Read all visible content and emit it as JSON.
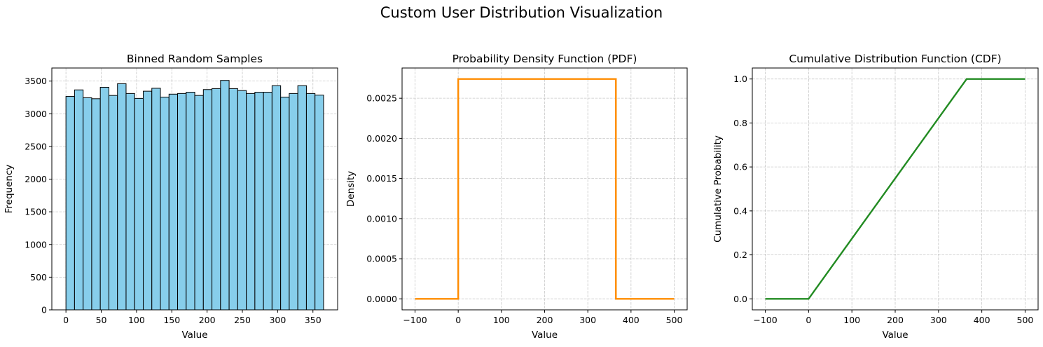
{
  "figure": {
    "title": "Custom User Distribution Visualization"
  },
  "chart_data": [
    {
      "type": "bar",
      "title": "Binned Random Samples",
      "xlabel": "Value",
      "ylabel": "Frequency",
      "xlim": [
        -20,
        385
      ],
      "ylim": [
        0,
        3700
      ],
      "xticks": [
        0,
        50,
        100,
        150,
        200,
        250,
        300,
        350
      ],
      "yticks": [
        0,
        500,
        1000,
        1500,
        2000,
        2500,
        3000,
        3500
      ],
      "grid": true,
      "bar_color": "#87ceeb",
      "edge_color": "#000000",
      "bin_start": 0,
      "bin_width": 12.17,
      "values": [
        3265,
        3365,
        3245,
        3230,
        3405,
        3280,
        3460,
        3310,
        3235,
        3345,
        3390,
        3255,
        3300,
        3310,
        3330,
        3280,
        3370,
        3385,
        3510,
        3385,
        3355,
        3310,
        3330,
        3330,
        3430,
        3255,
        3310,
        3430,
        3310,
        3285
      ]
    },
    {
      "type": "line",
      "title": "Probability Density Function (PDF)",
      "xlabel": "Value",
      "ylabel": "Density",
      "xlim": [
        -130,
        530
      ],
      "ylim": [
        -0.000137,
        0.002877
      ],
      "xticks": [
        -100,
        0,
        100,
        200,
        300,
        400,
        500
      ],
      "yticks": [
        0,
        0.0005,
        0.001,
        0.0015,
        0.002,
        0.0025
      ],
      "ytick_labels": [
        "0.0000",
        "0.0005",
        "0.0010",
        "0.0015",
        "0.0020",
        "0.0025"
      ],
      "grid": true,
      "color": "#ff8c00",
      "x": [
        -100,
        0,
        0,
        365,
        365,
        500
      ],
      "y": [
        0,
        0,
        0.00274,
        0.00274,
        0,
        0
      ]
    },
    {
      "type": "line",
      "title": "Cumulative Distribution Function (CDF)",
      "xlabel": "Value",
      "ylabel": "Cumulative Probability",
      "xlim": [
        -130,
        530
      ],
      "ylim": [
        -0.05,
        1.05
      ],
      "xticks": [
        -100,
        0,
        100,
        200,
        300,
        400,
        500
      ],
      "yticks": [
        0,
        0.2,
        0.4,
        0.6,
        0.8,
        1.0
      ],
      "ytick_labels": [
        "0.0",
        "0.2",
        "0.4",
        "0.6",
        "0.8",
        "1.0"
      ],
      "grid": true,
      "color": "#228b22",
      "x": [
        -100,
        0,
        365,
        500
      ],
      "y": [
        0,
        0,
        1,
        1
      ]
    }
  ]
}
